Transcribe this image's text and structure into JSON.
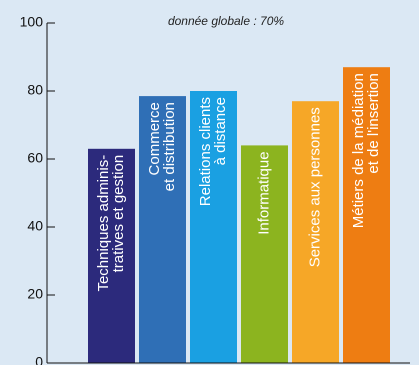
{
  "chart_data": {
    "type": "bar",
    "subtitle": "donnée globale : 70%",
    "categories": [
      [
        "Techniques adminis-",
        "tratives et gestion"
      ],
      [
        "Commerce",
        "et distribution"
      ],
      [
        "Relations clients",
        "à distance"
      ],
      [
        "Informatique"
      ],
      [
        "Services aux personnes"
      ],
      [
        "Métiers de la médiation",
        "et de l'insertion"
      ]
    ],
    "values": [
      63,
      78.5,
      80,
      64,
      77,
      87
    ],
    "colors": [
      "#2c2a7c",
      "#2f6fb6",
      "#1aa0e2",
      "#8cb41f",
      "#f6a727",
      "#ee7d12"
    ],
    "ylim": [
      0,
      100
    ],
    "yticks": [
      0,
      20,
      40,
      60,
      80,
      100
    ]
  }
}
